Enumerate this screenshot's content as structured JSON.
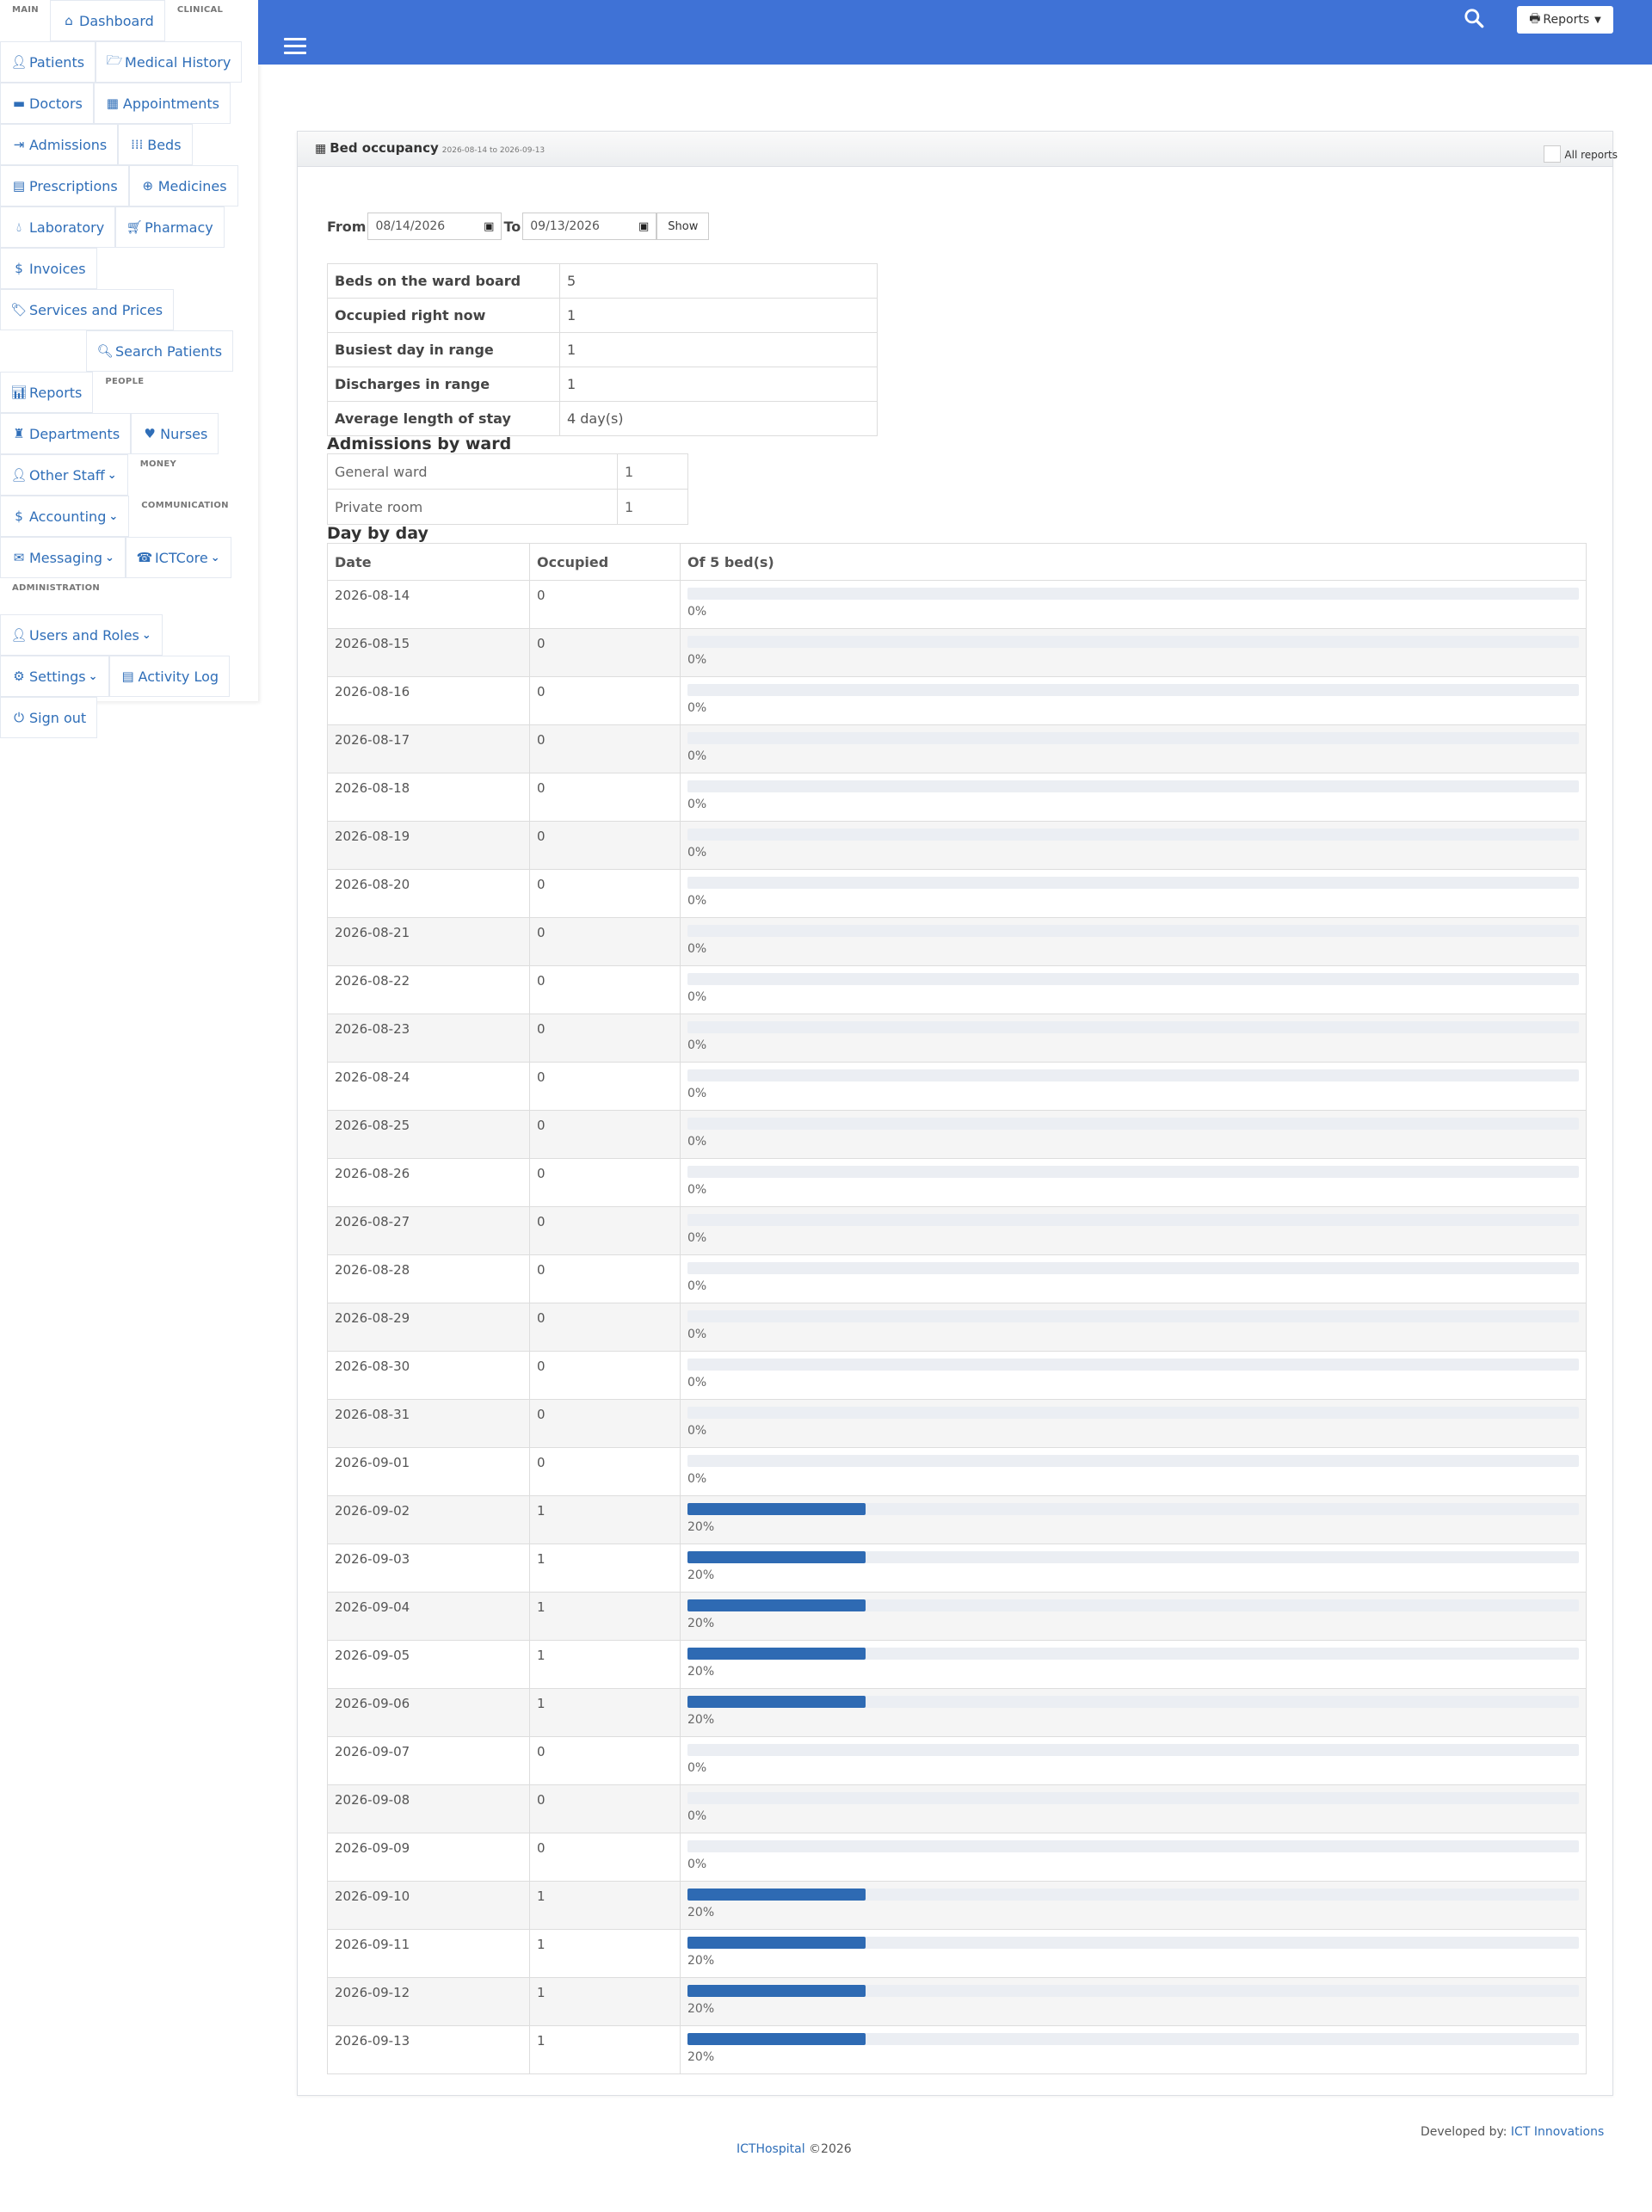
{
  "sidebar": {
    "sections": {
      "main": "MAIN",
      "clinical": "CLINICAL",
      "people": "PEOPLE",
      "money": "MONEY",
      "communication": "COMMUNICATION",
      "administration": "ADMINISTRATION"
    },
    "items": {
      "dashboard": "Dashboard",
      "patients": "Patients",
      "medical_history": "Medical History",
      "doctors": "Doctors",
      "appointments": "Appointments",
      "admissions": "Admissions",
      "beds": "Beds",
      "prescriptions": "Prescriptions",
      "medicines": "Medicines",
      "laboratory": "Laboratory",
      "pharmacy": "Pharmacy",
      "invoices": "Invoices",
      "services_prices": "Services and Prices",
      "search_patients": "Search Patients",
      "reports": "Reports",
      "departments": "Departments",
      "nurses": "Nurses",
      "other_staff": "Other Staff",
      "accounting": "Accounting",
      "messaging": "Messaging",
      "ictcore": "ICTCore",
      "users_roles": "Users and Roles",
      "settings": "Settings",
      "activity_log": "Activity Log",
      "sign_out": "Sign out"
    }
  },
  "topbar": {
    "reports_label": "Reports",
    "accent": "#3f72d6"
  },
  "panel": {
    "title": "Bed occupancy",
    "range": "2026-08-14 to 2026-09-13",
    "all_reports": "All reports"
  },
  "filter": {
    "from_label": "From",
    "from_value": "08/14/2026",
    "to_label": "To",
    "to_value": "09/13/2026",
    "show": "Show"
  },
  "summary": [
    {
      "label": "Beds on the ward board",
      "value": "5"
    },
    {
      "label": "Occupied right now",
      "value": "1"
    },
    {
      "label": "Busiest day in range",
      "value": "1"
    },
    {
      "label": "Discharges in range",
      "value": "1"
    },
    {
      "label": "Average length of stay",
      "value": "4 day(s)"
    }
  ],
  "ward_heading": "Admissions by ward",
  "wards": [
    {
      "name": "General ward",
      "count": "1"
    },
    {
      "name": "Private room",
      "count": "1"
    }
  ],
  "day_heading": "Day by day",
  "day_columns": {
    "date": "Date",
    "occupied": "Occupied",
    "of": "Of 5 bed(s)"
  },
  "days": [
    {
      "date": "2026-08-14",
      "occ": "0",
      "pct": "0%",
      "frac": 0
    },
    {
      "date": "2026-08-15",
      "occ": "0",
      "pct": "0%",
      "frac": 0
    },
    {
      "date": "2026-08-16",
      "occ": "0",
      "pct": "0%",
      "frac": 0
    },
    {
      "date": "2026-08-17",
      "occ": "0",
      "pct": "0%",
      "frac": 0
    },
    {
      "date": "2026-08-18",
      "occ": "0",
      "pct": "0%",
      "frac": 0
    },
    {
      "date": "2026-08-19",
      "occ": "0",
      "pct": "0%",
      "frac": 0
    },
    {
      "date": "2026-08-20",
      "occ": "0",
      "pct": "0%",
      "frac": 0
    },
    {
      "date": "2026-08-21",
      "occ": "0",
      "pct": "0%",
      "frac": 0
    },
    {
      "date": "2026-08-22",
      "occ": "0",
      "pct": "0%",
      "frac": 0
    },
    {
      "date": "2026-08-23",
      "occ": "0",
      "pct": "0%",
      "frac": 0
    },
    {
      "date": "2026-08-24",
      "occ": "0",
      "pct": "0%",
      "frac": 0
    },
    {
      "date": "2026-08-25",
      "occ": "0",
      "pct": "0%",
      "frac": 0
    },
    {
      "date": "2026-08-26",
      "occ": "0",
      "pct": "0%",
      "frac": 0
    },
    {
      "date": "2026-08-27",
      "occ": "0",
      "pct": "0%",
      "frac": 0
    },
    {
      "date": "2026-08-28",
      "occ": "0",
      "pct": "0%",
      "frac": 0
    },
    {
      "date": "2026-08-29",
      "occ": "0",
      "pct": "0%",
      "frac": 0
    },
    {
      "date": "2026-08-30",
      "occ": "0",
      "pct": "0%",
      "frac": 0
    },
    {
      "date": "2026-08-31",
      "occ": "0",
      "pct": "0%",
      "frac": 0
    },
    {
      "date": "2026-09-01",
      "occ": "0",
      "pct": "0%",
      "frac": 0
    },
    {
      "date": "2026-09-02",
      "occ": "1",
      "pct": "20%",
      "frac": 0.2
    },
    {
      "date": "2026-09-03",
      "occ": "1",
      "pct": "20%",
      "frac": 0.2
    },
    {
      "date": "2026-09-04",
      "occ": "1",
      "pct": "20%",
      "frac": 0.2
    },
    {
      "date": "2026-09-05",
      "occ": "1",
      "pct": "20%",
      "frac": 0.2
    },
    {
      "date": "2026-09-06",
      "occ": "1",
      "pct": "20%",
      "frac": 0.2
    },
    {
      "date": "2026-09-07",
      "occ": "0",
      "pct": "0%",
      "frac": 0
    },
    {
      "date": "2026-09-08",
      "occ": "0",
      "pct": "0%",
      "frac": 0
    },
    {
      "date": "2026-09-09",
      "occ": "0",
      "pct": "0%",
      "frac": 0
    },
    {
      "date": "2026-09-10",
      "occ": "1",
      "pct": "20%",
      "frac": 0.2
    },
    {
      "date": "2026-09-11",
      "occ": "1",
      "pct": "20%",
      "frac": 0.2
    },
    {
      "date": "2026-09-12",
      "occ": "1",
      "pct": "20%",
      "frac": 0.2
    },
    {
      "date": "2026-09-13",
      "occ": "1",
      "pct": "20%",
      "frac": 0.2
    }
  ],
  "footer": {
    "dev_prefix": "Developed by:",
    "dev_link": "ICT Innovations",
    "brand": "ICTHospital",
    "copy": "©2026"
  }
}
